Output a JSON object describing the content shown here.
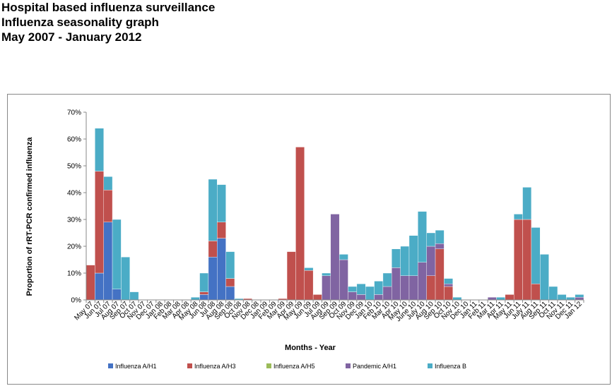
{
  "title_lines": [
    "Hospital based influenza surveillance",
    "Influenza seasonality graph",
    "May 2007 - January 2012"
  ],
  "chart_data": {
    "type": "bar",
    "stacked": true,
    "xlabel": "Months - Year",
    "ylabel": "Proportion of rRT-PCR confirmed influenza",
    "ylim": [
      0,
      70
    ],
    "yticks": [
      "0%",
      "10%",
      "20%",
      "30%",
      "40%",
      "50%",
      "60%",
      "70%"
    ],
    "grid": false,
    "legend_position": "bottom",
    "categories": [
      "May 07",
      "Jun 07",
      "Jul 07",
      "Aug 07",
      "Sep 07",
      "Oct 07",
      "Nov 07",
      "Dec 07",
      "Jan 08",
      "Feb 08",
      "Mar 08",
      "Apr 08",
      "May 08",
      "Jun 08",
      "Jul 08",
      "Aug 08",
      "Sep 08",
      "Oct 08",
      "Nov 08",
      "Dec 08",
      "Jan 09",
      "Feb 09",
      "Mar 09",
      "Apr 09",
      "May 09",
      "Jun 09",
      "Jul 09",
      "Aug 09",
      "Sep 09",
      "Oct 09",
      "Nov 09",
      "Dec 09",
      "Jan 10",
      "Feb 10",
      "Mar 10",
      "Apr 10",
      "May 10",
      "June 10",
      "July 10",
      "Aug 10",
      "Sep 10",
      "Oct 10",
      "Nov 10",
      "Dec 10",
      "Jan 11",
      "Feb 11",
      "Mar 11",
      "Apr 11",
      "May 11",
      "Jun 11",
      "July 11",
      "Aug 11",
      "Sep 11",
      "Oct 11",
      "Nov 11",
      "Dec 11",
      "Jan 12"
    ],
    "series": [
      {
        "name": "Influenza A/H1",
        "color": "#4472C4",
        "values": [
          0,
          10,
          29,
          4,
          0,
          0,
          0,
          0,
          0,
          0,
          0,
          0,
          0,
          2,
          16,
          23,
          5,
          0,
          0,
          0,
          0,
          0,
          0,
          0,
          0,
          0,
          0,
          0,
          0,
          0,
          0,
          0,
          0,
          0,
          0,
          0,
          0,
          0,
          0,
          0,
          0,
          0,
          0,
          0,
          0,
          0,
          0,
          0,
          0,
          0,
          0,
          0,
          0,
          0,
          0,
          0,
          0
        ]
      },
      {
        "name": "Influenza A/H3",
        "color": "#C0504D",
        "values": [
          13,
          38,
          12,
          0,
          0,
          0,
          0,
          0,
          0,
          0,
          0,
          0,
          0,
          1,
          6,
          6,
          3,
          0,
          0.5,
          0,
          0,
          0,
          0.5,
          18,
          57,
          11,
          2,
          0,
          0,
          0,
          0,
          0,
          0,
          0,
          0,
          0,
          0,
          0,
          0,
          9,
          19,
          5,
          0,
          0,
          0,
          0,
          0,
          0,
          2,
          30,
          30,
          6,
          0,
          0,
          0,
          0,
          0
        ]
      },
      {
        "name": "Influenza A/H5",
        "color": "#9BBB59",
        "values": [
          0,
          0,
          0,
          0,
          0,
          0,
          0,
          0,
          0,
          0,
          0,
          0,
          0,
          0,
          0,
          0,
          0,
          0,
          0,
          0,
          0,
          0,
          0,
          0,
          0,
          0,
          0,
          0,
          0,
          0,
          0,
          0,
          0,
          0,
          0,
          0,
          0,
          0,
          0,
          0,
          0,
          0,
          0,
          0,
          0,
          0,
          0,
          0,
          0,
          0,
          0,
          0,
          0,
          0,
          0,
          0,
          0
        ]
      },
      {
        "name": "Pandemic A/H1",
        "color": "#8064A2",
        "values": [
          0,
          0,
          0,
          0,
          0,
          0,
          0,
          0,
          0,
          0,
          0,
          0,
          0,
          0,
          0,
          0,
          0,
          0,
          0,
          0,
          0,
          0,
          0,
          0,
          0,
          0,
          0,
          9,
          32,
          15,
          3,
          2,
          0,
          2,
          5,
          12,
          9,
          9,
          14,
          11,
          2,
          1,
          0,
          0,
          0,
          0,
          1,
          0,
          0,
          0,
          0,
          0,
          0,
          0,
          0,
          0,
          1
        ]
      },
      {
        "name": "Influenza B",
        "color": "#4BACC6",
        "values": [
          0,
          16,
          5,
          26,
          16,
          3,
          0,
          0,
          0,
          0,
          0,
          0,
          1,
          7,
          23,
          14,
          10,
          0.5,
          0,
          0,
          0,
          0,
          0,
          0,
          0,
          1,
          0,
          1,
          0,
          2,
          2,
          4,
          5,
          5,
          5,
          7,
          11,
          15,
          19,
          5,
          5,
          2,
          1,
          0,
          0,
          0,
          0,
          1,
          0,
          2,
          12,
          21,
          17,
          5,
          2,
          1,
          1
        ]
      }
    ]
  }
}
